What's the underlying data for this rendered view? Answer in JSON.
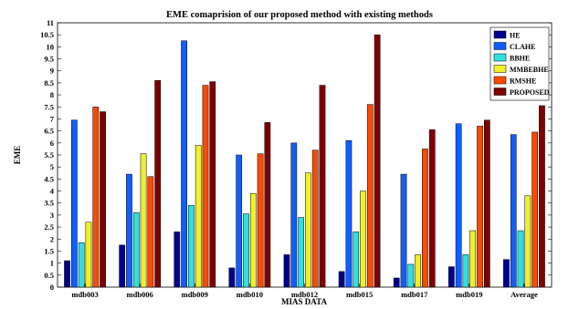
{
  "chart_data": {
    "type": "bar",
    "title": "EME comaprision of our proposed method with existing methods",
    "xlabel": "MIAS DATA",
    "ylabel": "EME",
    "ylim": [
      0,
      11
    ],
    "ytick_step": 0.5,
    "ytick_labels": [
      "0",
      "0.5",
      "1",
      "1.5",
      "2",
      "2.5",
      "3",
      "3.5",
      "4",
      "4.5",
      "5",
      "5.5",
      "6",
      "6.5",
      "7",
      "7.5",
      "8",
      "8.5",
      "9",
      "9.5",
      "10",
      "10.5",
      "11"
    ],
    "categories": [
      "mdb003",
      "mdb006",
      "mdb009",
      "mdb010",
      "mdb012",
      "mdb015",
      "mdb017",
      "mdb019",
      "Average"
    ],
    "legend_position": "top-right",
    "grid": false,
    "series": [
      {
        "name": "HE",
        "color": "#00008f",
        "values": [
          1.1,
          1.75,
          2.3,
          0.8,
          1.35,
          0.65,
          0.38,
          0.85,
          1.15
        ]
      },
      {
        "name": "CLAHE",
        "color": "#0f5fff",
        "values": [
          6.95,
          4.7,
          10.25,
          5.5,
          6.0,
          6.1,
          4.7,
          6.8,
          6.35
        ]
      },
      {
        "name": "BBHE",
        "color": "#2fe0e0",
        "values": [
          1.85,
          3.1,
          3.4,
          3.05,
          2.9,
          2.3,
          0.95,
          1.35,
          2.35
        ]
      },
      {
        "name": "MMBEBHE",
        "color": "#f0f02a",
        "values": [
          2.7,
          5.55,
          5.9,
          3.9,
          4.75,
          4.0,
          1.35,
          2.35,
          3.8
        ]
      },
      {
        "name": "RMSHE",
        "color": "#ff4a00",
        "values": [
          7.5,
          4.6,
          8.4,
          5.55,
          5.7,
          7.6,
          5.75,
          6.7,
          6.45
        ]
      },
      {
        "name": "PROPOSED",
        "color": "#7f0000",
        "values": [
          7.3,
          8.6,
          8.55,
          6.85,
          8.4,
          10.5,
          6.55,
          6.95,
          7.55
        ]
      }
    ]
  }
}
